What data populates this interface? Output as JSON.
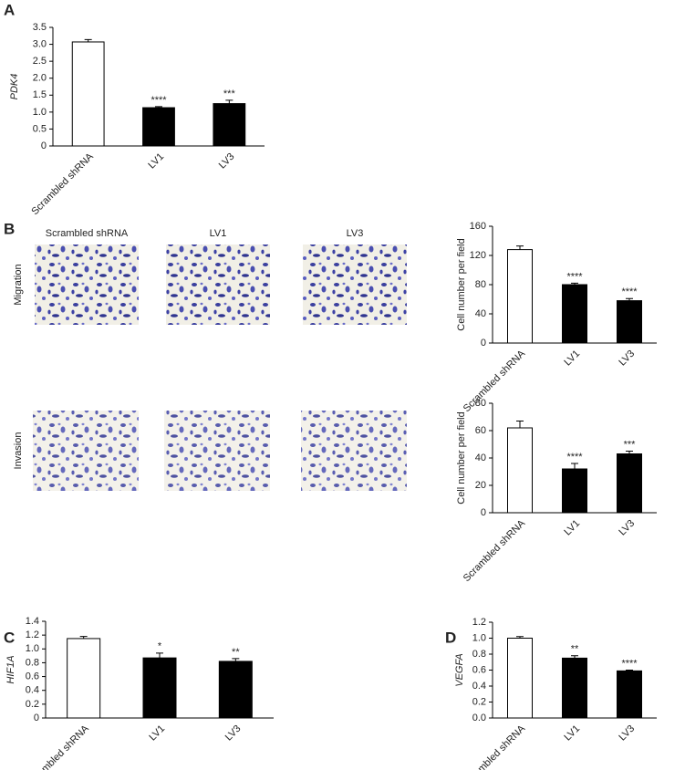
{
  "panel_labels": [
    "A",
    "B",
    "C",
    "D"
  ],
  "micrographs": {
    "columns": [
      "Scrambled shRNA",
      "LV1",
      "LV3"
    ],
    "rows": [
      "Migration",
      "Invasion"
    ]
  },
  "chart_data": [
    {
      "type": "bar",
      "y_label": "PDK4",
      "categories": [
        "Scrambled shRNA",
        "LV1",
        "LV3"
      ],
      "values": [
        3.07,
        1.13,
        1.25
      ],
      "errors": [
        0.07,
        0.03,
        0.1
      ],
      "annotations": [
        null,
        "****",
        "***"
      ],
      "colors": [
        "#ffffff",
        "#000000",
        "#000000"
      ],
      "ylim": [
        0,
        3.5
      ],
      "yticks": [
        0,
        0.5,
        {
          "value": 1,
          "label": "1.0"
        },
        1.5,
        {
          "value": 2,
          "label": "2.0"
        },
        2.5,
        {
          "value": 3,
          "label": "3.0"
        },
        3.5
      ]
    },
    {
      "type": "bar",
      "y_label": "Cell number per field",
      "categories": [
        "Scrambled shRNA",
        "LV1",
        "LV3"
      ],
      "values": [
        128,
        80,
        58
      ],
      "errors": [
        5,
        2,
        3
      ],
      "annotations": [
        null,
        "****",
        "****"
      ],
      "colors": [
        "#ffffff",
        "#000000",
        "#000000"
      ],
      "ylim": [
        0,
        160
      ],
      "yticks": [
        0,
        40,
        80,
        120,
        160
      ]
    },
    {
      "type": "bar",
      "y_label": "Cell number per field",
      "categories": [
        "Scrambled shRNA",
        "LV1",
        "LV3"
      ],
      "values": [
        62,
        32,
        43
      ],
      "errors": [
        5,
        4,
        2
      ],
      "annotations": [
        null,
        "****",
        "***"
      ],
      "colors": [
        "#ffffff",
        "#000000",
        "#000000"
      ],
      "ylim": [
        0,
        80
      ],
      "yticks": [
        0,
        20,
        40,
        60,
        80
      ]
    },
    {
      "type": "bar",
      "y_label": "HIF1A",
      "categories": [
        "Scrambled shRNA",
        "LV1",
        "LV3"
      ],
      "values": [
        1.15,
        0.87,
        0.82
      ],
      "errors": [
        0.03,
        0.07,
        0.04
      ],
      "annotations": [
        null,
        "*",
        "**"
      ],
      "colors": [
        "#ffffff",
        "#000000",
        "#000000"
      ],
      "ylim": [
        0,
        1.4
      ],
      "yticks": [
        0,
        0.2,
        0.4,
        0.6,
        0.8,
        {
          "value": 1,
          "label": "1.0"
        },
        1.2,
        1.4
      ]
    },
    {
      "type": "bar",
      "y_label": "VEGFA",
      "categories": [
        "Scrambled shRNA",
        "LV1",
        "LV3"
      ],
      "values": [
        1.0,
        0.75,
        0.59
      ],
      "errors": [
        0.02,
        0.03,
        0.01
      ],
      "annotations": [
        null,
        "**",
        "****"
      ],
      "colors": [
        "#ffffff",
        "#000000",
        "#000000"
      ],
      "ylim": [
        0,
        1.2
      ],
      "yticks": [
        {
          "value": 0,
          "label": "0.0"
        },
        0.2,
        0.4,
        0.6,
        0.8,
        {
          "value": 1,
          "label": "1.0"
        },
        1.2
      ]
    }
  ]
}
